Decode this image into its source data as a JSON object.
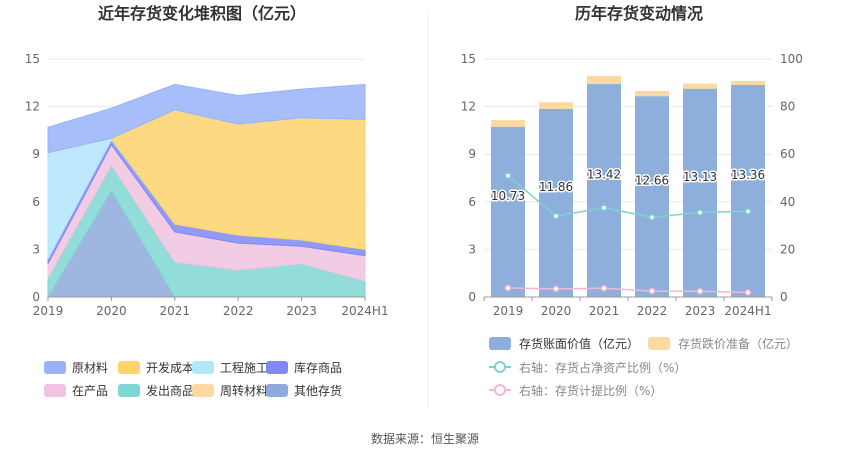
{
  "left_chart": {
    "title": "近年存货变化堆积图（亿元）"
  },
  "right_chart": {
    "title": "历年存货变动情况"
  },
  "footer": {
    "source": "数据来源：恒生聚源"
  },
  "chart_data": [
    {
      "type": "area",
      "title": "近年存货变化堆积图（亿元）",
      "x": [
        "2019",
        "2020",
        "2021",
        "2022",
        "2023",
        "2024H1"
      ],
      "ylim": [
        0,
        15
      ],
      "yticks": [
        0,
        3,
        6,
        9,
        12,
        15
      ],
      "grid": true,
      "legend_position": "bottom",
      "stacked": true,
      "series": [
        {
          "name": "其他存货",
          "color": "#8eaadb",
          "values": [
            0,
            6.7,
            0,
            0,
            0,
            0
          ]
        },
        {
          "name": "周转材料",
          "color": "#fcd9a0",
          "values": [
            0,
            0,
            0,
            0,
            0,
            0
          ]
        },
        {
          "name": "发出商品",
          "color": "#7fd6d3",
          "values": [
            1.2,
            1.6,
            2.2,
            1.7,
            2.1,
            1.0
          ]
        },
        {
          "name": "在产品",
          "color": "#f0c3e0",
          "values": [
            0.9,
            1.3,
            1.9,
            1.7,
            1.1,
            1.6
          ]
        },
        {
          "name": "库存商品",
          "color": "#8088f4",
          "values": [
            0.3,
            0.3,
            0.5,
            0.5,
            0.4,
            0.4
          ]
        },
        {
          "name": "工程施工",
          "color": "#b3e5fc",
          "values": [
            6.7,
            0.1,
            0,
            0,
            0,
            0
          ]
        },
        {
          "name": "开发成本",
          "color": "#fdd36b",
          "values": [
            0,
            0,
            7.2,
            7.0,
            7.7,
            8.2
          ]
        },
        {
          "name": "原材料",
          "color": "#99b3fa",
          "values": [
            1.6,
            1.9,
            1.6,
            1.8,
            1.8,
            2.2
          ]
        }
      ]
    },
    {
      "type": "bar",
      "title": "历年存货变动情况",
      "categories": [
        "2019",
        "2020",
        "2021",
        "2022",
        "2023",
        "2024H1"
      ],
      "ylim": [
        0,
        15
      ],
      "yticks": [
        0,
        3,
        6,
        9,
        12,
        15
      ],
      "y2lim": [
        0,
        100
      ],
      "y2ticks": [
        0,
        20,
        40,
        60,
        80,
        100
      ],
      "grid": true,
      "legend_position": "bottom",
      "series": [
        {
          "name": "存货账面价值（亿元）",
          "kind": "bar",
          "axis": "left",
          "color": "#8eaedb",
          "values": [
            10.73,
            11.86,
            13.42,
            12.66,
            13.13,
            13.36
          ],
          "labels": [
            "10.73",
            "11.86",
            "13.42",
            "12.66",
            "13.13",
            "13.36"
          ]
        },
        {
          "name": "存货跌价准备（亿元）",
          "kind": "bar",
          "axis": "left",
          "color": "#fbd9a0",
          "values": [
            0.42,
            0.42,
            0.52,
            0.32,
            0.32,
            0.26
          ]
        },
        {
          "name": "右轴：存货占净资产比例（%）",
          "kind": "line",
          "axis": "right",
          "color": "#80d2d2",
          "values": [
            51,
            34,
            37.5,
            33.5,
            35.5,
            36
          ]
        },
        {
          "name": "右轴：存货计提比例（%）",
          "kind": "line",
          "axis": "right",
          "color": "#f0b8d8",
          "values": [
            3.8,
            3.4,
            3.7,
            2.5,
            2.4,
            1.9
          ]
        }
      ]
    }
  ]
}
